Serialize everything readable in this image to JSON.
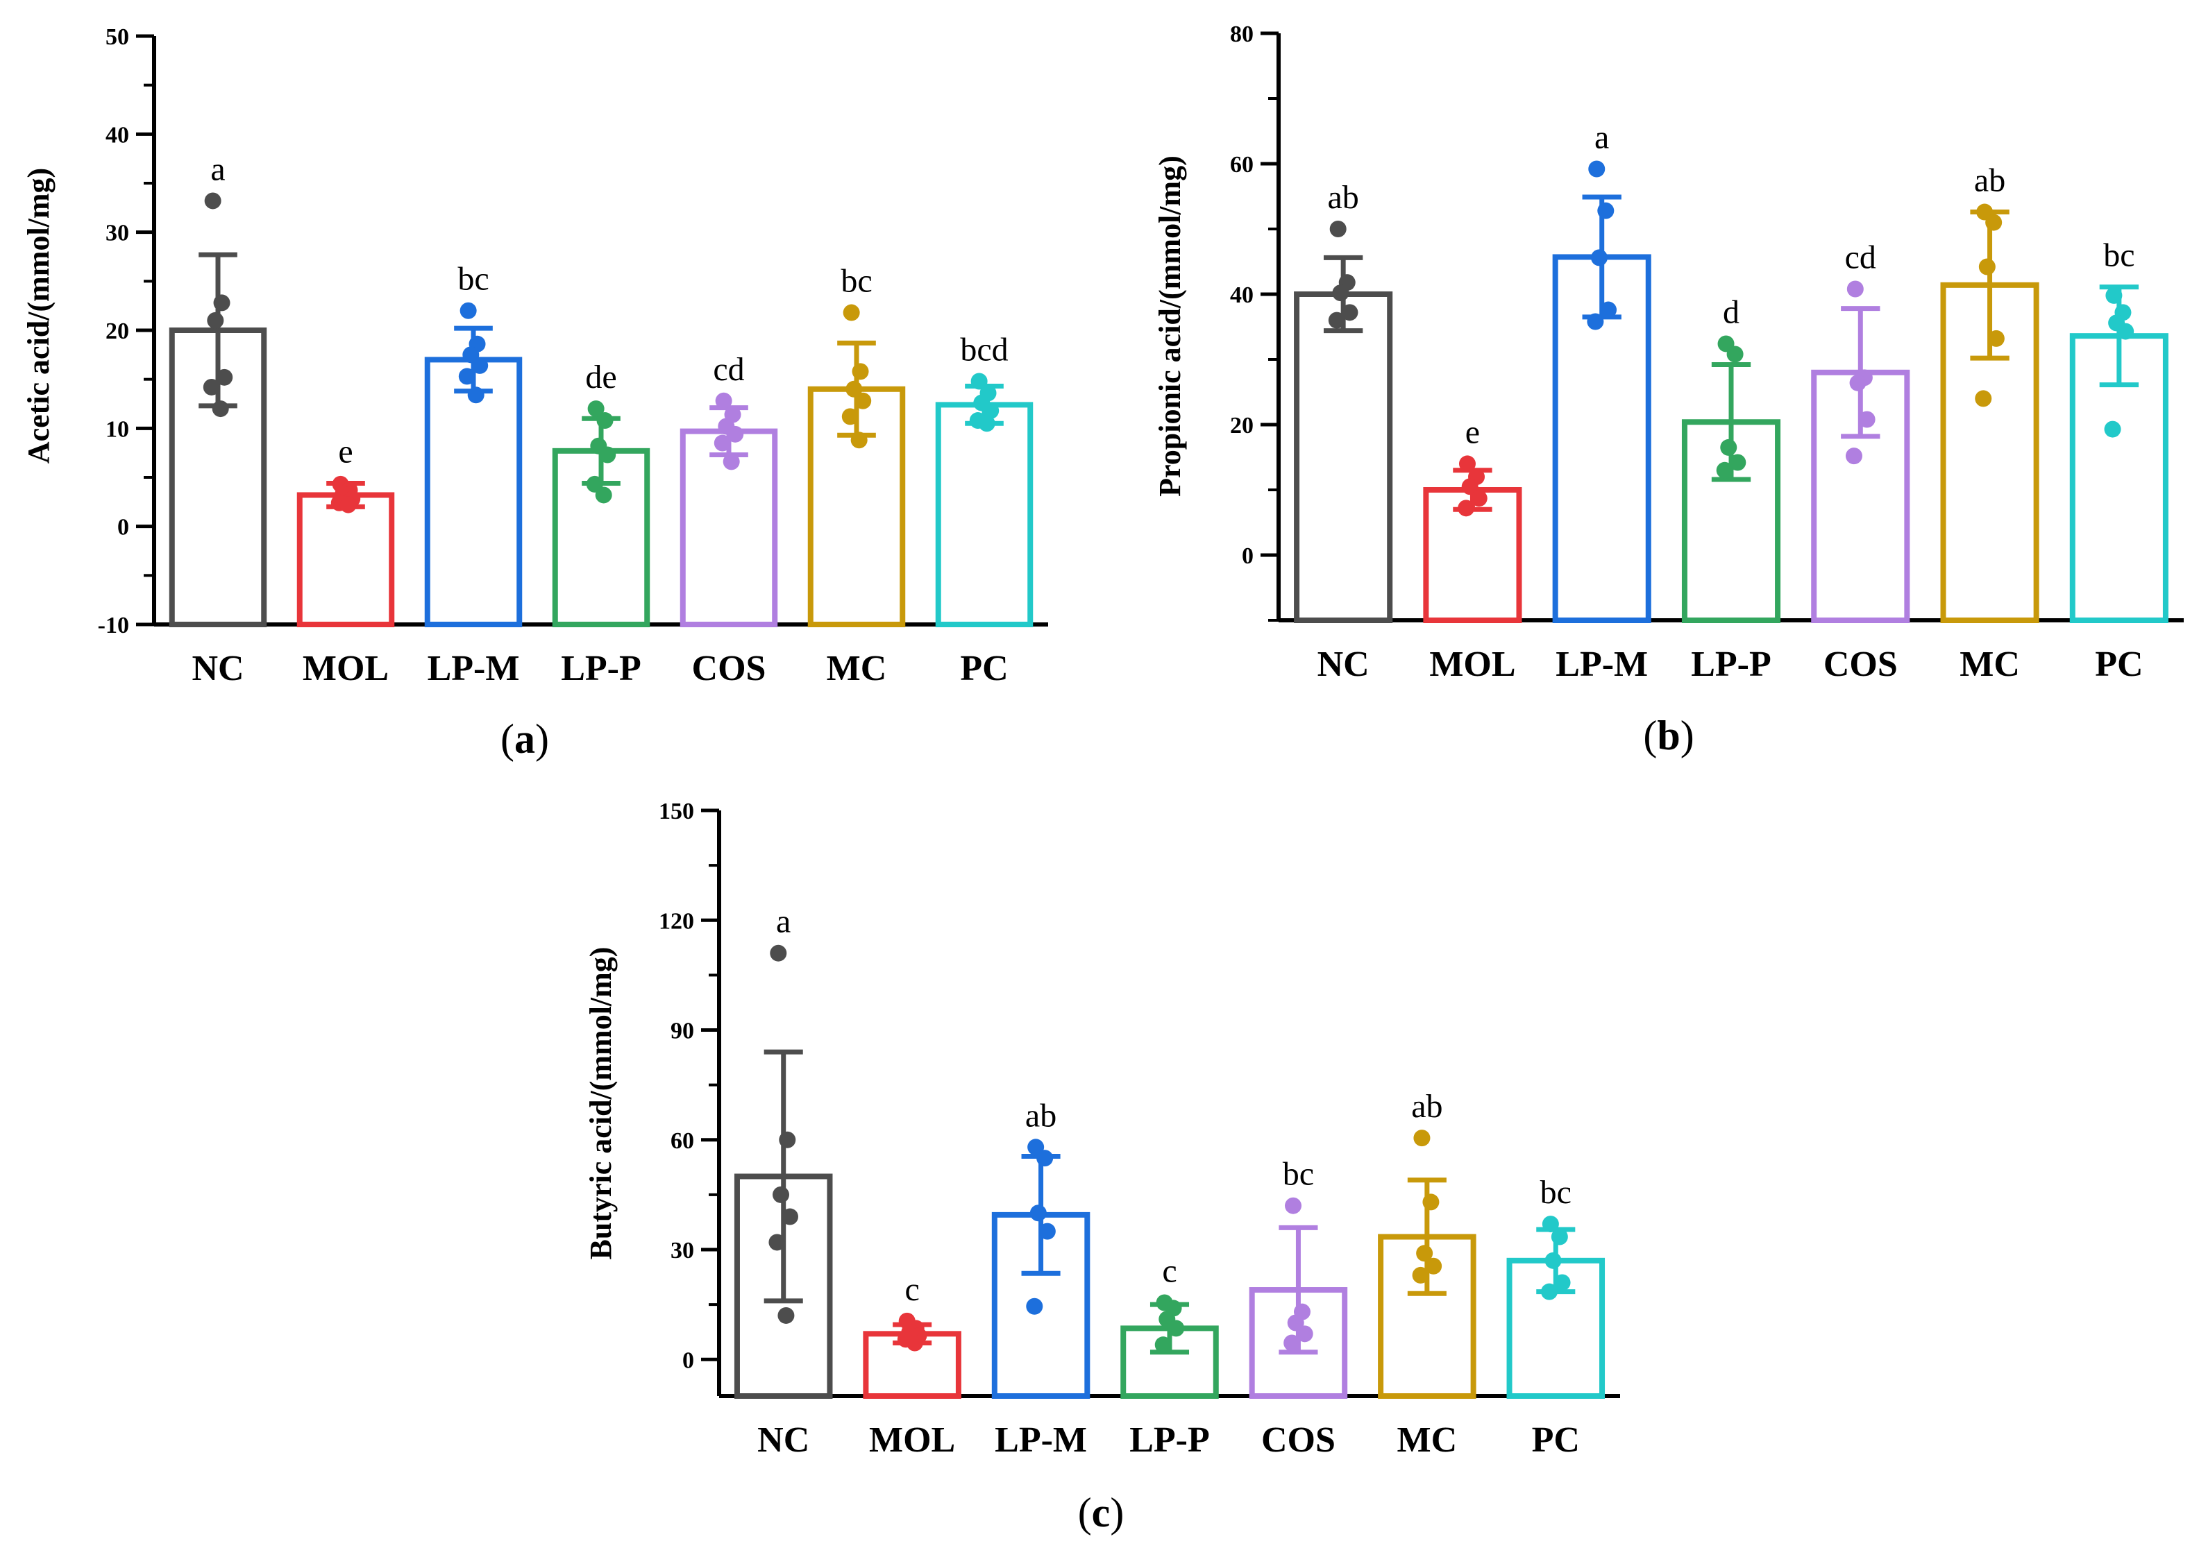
{
  "categories": [
    "NC",
    "MOL",
    "LP-M",
    "LP-P",
    "COS",
    "MC",
    "PC"
  ],
  "colors": [
    "#4d4d4d",
    "#e8353a",
    "#1d6fdc",
    "#33a65e",
    "#b07fe0",
    "#c8990a",
    "#22c9c9"
  ],
  "chart_data": [
    {
      "type": "bar",
      "caption_open": "(",
      "caption_letter": "a",
      "caption_close": ")",
      "ylabel": "Acetic acid/(mmol/mg)",
      "ylim": [
        -10,
        50
      ],
      "yticks": [
        "-10",
        "0",
        "10",
        "20",
        "30",
        "40",
        "50"
      ],
      "means": [
        20.0,
        3.2,
        17.0,
        7.7,
        9.7,
        14.0,
        12.4
      ],
      "sd": [
        7.7,
        1.2,
        3.2,
        3.3,
        2.4,
        4.7,
        1.9
      ],
      "points": [
        [
          33.2,
          22.8,
          21.0,
          15.2,
          14.2,
          12.0
        ],
        [
          4.3,
          3.7,
          3.3,
          2.8,
          2.4,
          2.2
        ],
        [
          22.0,
          18.6,
          17.5,
          16.4,
          15.3,
          13.4
        ],
        [
          12.0,
          10.8,
          8.2,
          7.3,
          4.3,
          3.2
        ],
        [
          12.8,
          11.4,
          10.2,
          9.4,
          8.5,
          6.6
        ],
        [
          21.8,
          15.8,
          14.0,
          12.8,
          11.2,
          8.8
        ],
        [
          14.8,
          13.6,
          12.6,
          11.8,
          10.8,
          10.5
        ]
      ],
      "letters": [
        "a",
        "e",
        "bc",
        "de",
        "cd",
        "bc",
        "bcd"
      ]
    },
    {
      "type": "bar",
      "caption_open": "(",
      "caption_letter": "b",
      "caption_close": ")",
      "ylabel": "Propionic acid/(mmol/mg)",
      "ylim": [
        -10,
        80
      ],
      "yticks": [
        "0",
        "20",
        "40",
        "60",
        "80"
      ],
      "means": [
        40.0,
        10.0,
        45.7,
        20.4,
        28.0,
        41.4,
        33.6
      ],
      "sd": [
        5.6,
        3.0,
        9.2,
        8.8,
        9.8,
        11.2,
        7.5
      ],
      "points": [
        [
          50.0,
          41.8,
          40.2,
          37.2,
          36.0
        ],
        [
          14.0,
          12.0,
          10.5,
          8.7,
          7.2
        ],
        [
          59.2,
          52.8,
          45.6,
          37.6,
          35.8
        ],
        [
          32.4,
          30.8,
          16.5,
          14.2,
          13.0
        ],
        [
          40.8,
          27.2,
          26.4,
          20.8,
          15.2
        ],
        [
          52.6,
          51.0,
          44.2,
          33.2,
          24.0
        ],
        [
          39.8,
          37.2,
          35.6,
          34.3,
          19.3
        ]
      ],
      "letters": [
        "ab",
        "e",
        "a",
        "d",
        "cd",
        "ab",
        "bc"
      ]
    },
    {
      "type": "bar",
      "caption_open": "(",
      "caption_letter": "c",
      "caption_close": ")",
      "ylabel": "Butyric acid/(mmol/mg)",
      "ylim": [
        -10,
        150
      ],
      "yticks": [
        "0",
        "30",
        "60",
        "90",
        "120",
        "150"
      ],
      "means": [
        50.0,
        7.0,
        39.5,
        8.5,
        19.0,
        33.5,
        27.0
      ],
      "sd": [
        34.0,
        2.5,
        16.0,
        6.5,
        17.0,
        15.5,
        8.5
      ],
      "points": [
        [
          111.0,
          60.0,
          45.0,
          39.0,
          32.0,
          12.0
        ],
        [
          10.5,
          8.5,
          7.5,
          6.5,
          5.5,
          4.5
        ],
        [
          58.0,
          55.0,
          40.0,
          35.0,
          14.5
        ],
        [
          15.5,
          14.0,
          11.0,
          8.5,
          4.0
        ],
        [
          42.0,
          13.0,
          10.0,
          7.0,
          4.5
        ],
        [
          60.5,
          43.0,
          29.0,
          25.5,
          23.0
        ],
        [
          37.0,
          33.5,
          27.0,
          21.0,
          18.5
        ]
      ],
      "letters": [
        "a",
        "c",
        "ab",
        "c",
        "bc",
        "ab",
        "bc"
      ]
    }
  ]
}
